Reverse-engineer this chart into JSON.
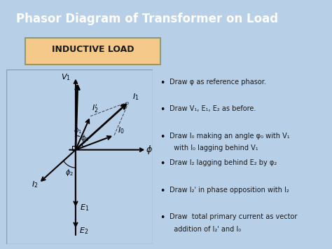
{
  "title": "Phasor Diagram of Transformer on Load",
  "subtitle": "INDUCTIVE LOAD",
  "bg_color": "#b8cfe8",
  "title_bg": "#cc2222",
  "subtitle_bg": "#f5c98a",
  "title_color": "#ffffff",
  "subtitle_color": "#1a1a1a",
  "diagram_bg": "#ffffff",
  "bullet_points": [
    "Draw φ as reference phasor.",
    "Draw V₁, E₁, E₂ as before.",
    "Draw I₀ making an angle φ₀ with V₁\n  with I₀ lagging behind V₁",
    "Draw I₂ lagging behind E₂ by φ₂",
    "Draw I₂' in phase opposition with I₂",
    "Draw  total primary current as vector\n  addition of I₂' and I₀"
  ]
}
